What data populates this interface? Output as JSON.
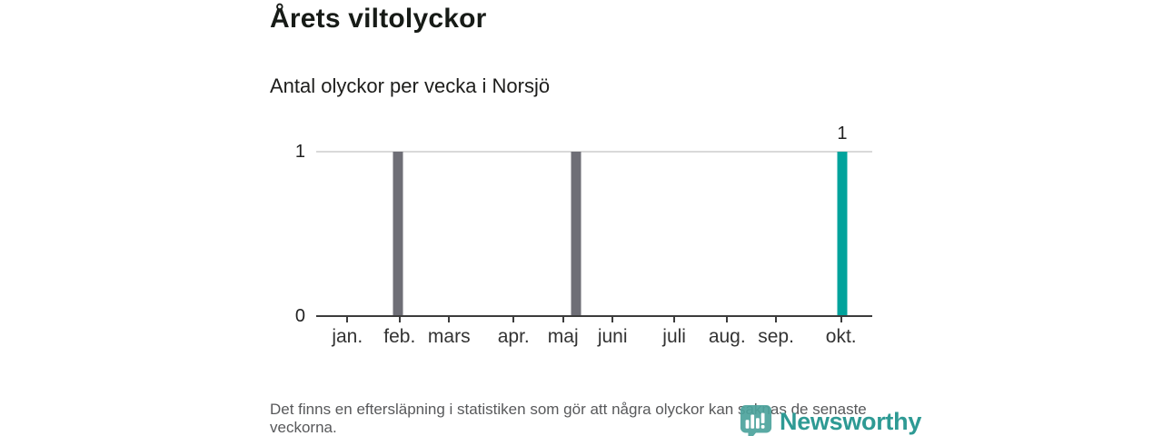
{
  "header": {
    "title": "Årets viltolyckor",
    "subtitle": "Antal olyckor per vecka i Norsjö"
  },
  "footer": {
    "note": "Det finns en eftersläpning i statistiken som gör att några olyckor kan saknas de senaste veckorna.",
    "brand_name": "Newsworthy"
  },
  "colors": {
    "bar_default": "#6E6E76",
    "bar_highlight": "#00A39C",
    "axis": "#3C3C3C",
    "gridline": "#D9D9D9",
    "text_dark": "#1A1A1A",
    "text_muted": "#58595B",
    "brand_teal": "#2E9A94"
  },
  "chart_data": {
    "type": "bar",
    "title": "Årets viltolyckor",
    "subtitle": "Antal olyckor per vecka i Norsjö",
    "ylim": [
      0,
      1
    ],
    "yticks": [
      0,
      1
    ],
    "grid": "single horizontal gridline at y=1; x-axis baseline at y=0",
    "legend": "none",
    "months": [
      {
        "label": "jan.",
        "pct": 5.6
      },
      {
        "label": "feb.",
        "pct": 15.0
      },
      {
        "label": "mars",
        "pct": 23.9
      },
      {
        "label": "apr.",
        "pct": 35.5
      },
      {
        "label": "maj",
        "pct": 44.4
      },
      {
        "label": "juni",
        "pct": 53.3
      },
      {
        "label": "juli",
        "pct": 64.4
      },
      {
        "label": "aug.",
        "pct": 73.9
      },
      {
        "label": "sep.",
        "pct": 82.7
      },
      {
        "label": "okt.",
        "pct": 94.4
      }
    ],
    "bars": [
      {
        "month": "feb.",
        "value": 1,
        "pct": 14.7,
        "color": "#6E6E76",
        "data_label": "",
        "highlight": false
      },
      {
        "month": "maj",
        "value": 1,
        "pct": 46.7,
        "color": "#6E6E76",
        "data_label": "",
        "highlight": false
      },
      {
        "month": "okt.",
        "value": 1,
        "pct": 94.6,
        "color": "#00A39C",
        "data_label": "1",
        "highlight": true
      }
    ]
  }
}
